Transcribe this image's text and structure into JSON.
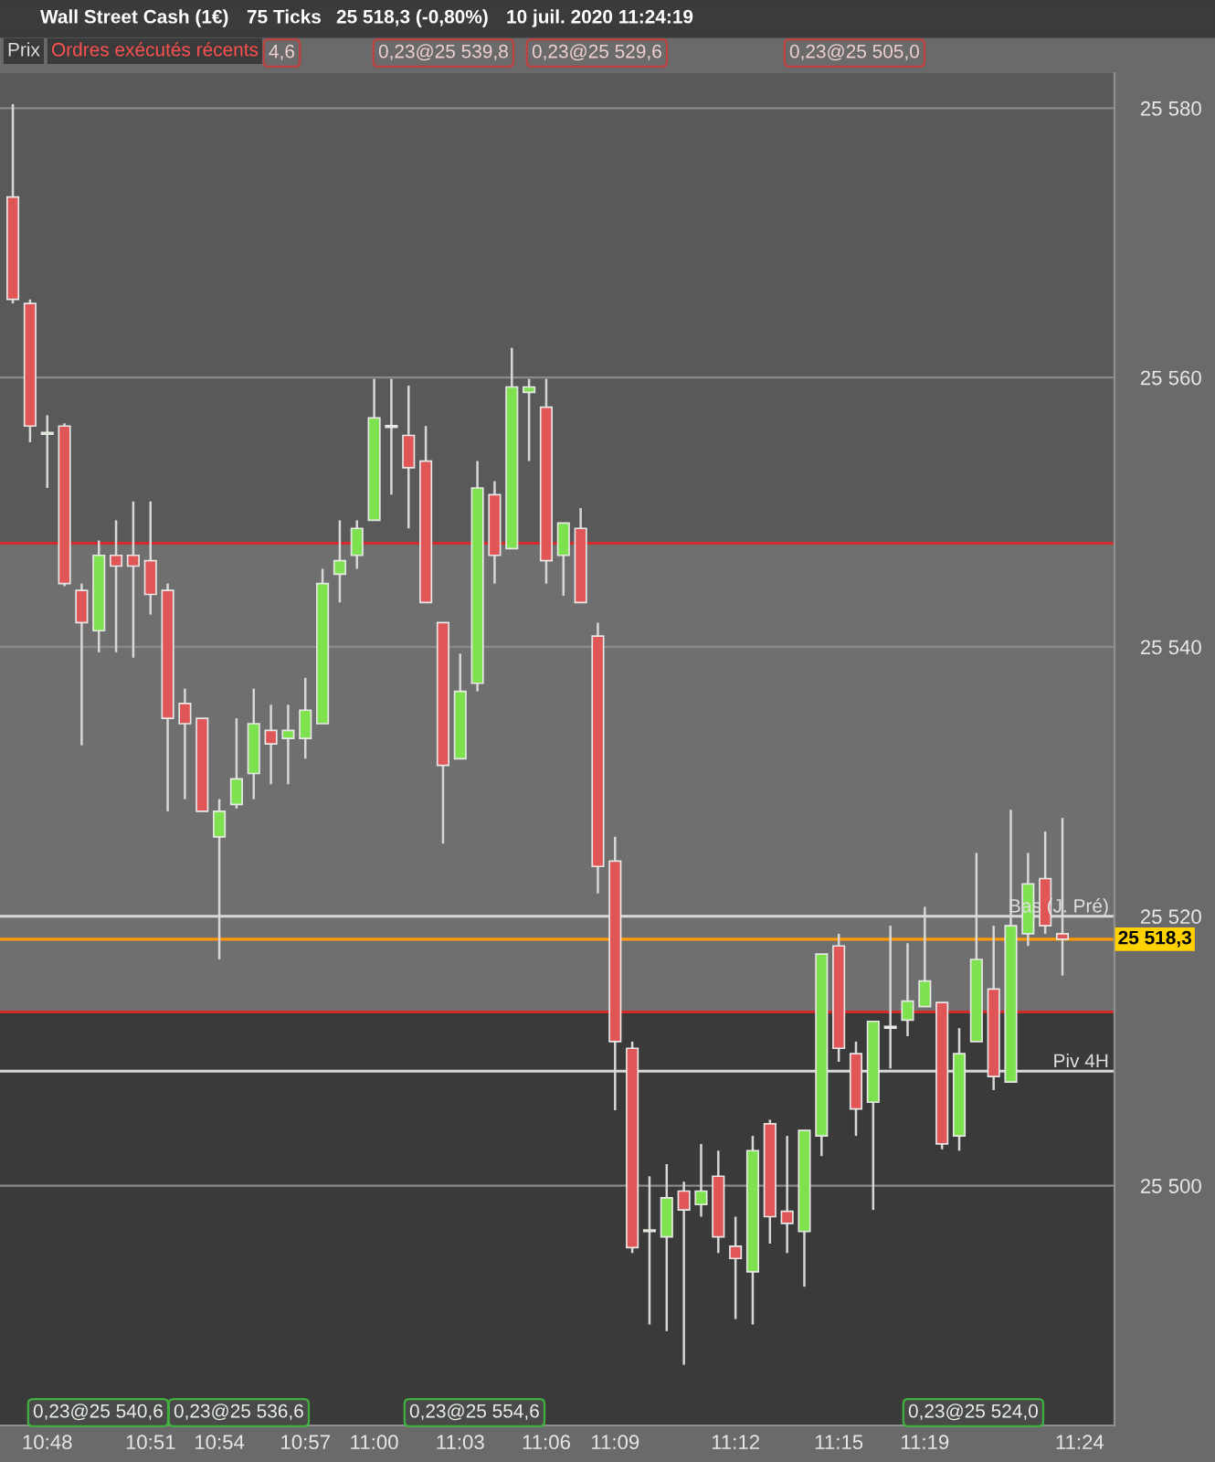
{
  "chart_data": {
    "type": "candlestick",
    "title": "Wall Street Cash (1€)",
    "annotations": [
      "75 Ticks",
      "25 518,3 (-0,80%)",
      "10 juil. 2020 11:24:19",
      "Prix",
      "Ordres exécutés récents",
      "4,6",
      "0,23@25 539,8",
      "0,23@25 529,6",
      "0,23@25 505,0",
      "0,23@25 540,6",
      "0,23@25 536,6",
      "0,23@25 554,6",
      "0,23@25 524,0"
    ],
    "categories": [
      null,
      null,
      "10:48",
      null,
      null,
      null,
      null,
      null,
      "10:51",
      null,
      null,
      null,
      "10:54",
      null,
      null,
      null,
      null,
      "10:57",
      null,
      null,
      null,
      "11:00",
      null,
      null,
      null,
      null,
      "11:03",
      null,
      null,
      null,
      null,
      "11:06",
      null,
      null,
      null,
      "11:09",
      null,
      null,
      null,
      null,
      null,
      null,
      "11:12",
      null,
      null,
      null,
      null,
      null,
      "11:15",
      null,
      null,
      null,
      null,
      "11:19",
      null,
      null,
      null,
      null,
      null,
      null,
      null,
      null,
      "11:24"
    ],
    "ohlc": [
      [
        25573.4,
        25580.3,
        25565.5,
        25565.8
      ],
      [
        25565.5,
        25565.8,
        25555.2,
        25556.4
      ],
      [
        25555.8,
        25557.2,
        25551.8,
        25555.8
      ],
      [
        25556.4,
        25556.6,
        25544.5,
        25544.7
      ],
      [
        25544.2,
        25544.7,
        25532.7,
        25541.8
      ],
      [
        25541.2,
        25547.9,
        25539.6,
        25546.8
      ],
      [
        25546.8,
        25549.4,
        25539.6,
        25546.0
      ],
      [
        25546.8,
        25550.8,
        25539.2,
        25546.0
      ],
      [
        25546.4,
        25550.8,
        25542.4,
        25543.9
      ],
      [
        25544.2,
        25544.7,
        25527.8,
        25534.7
      ],
      [
        25535.8,
        25536.9,
        25528.7,
        25534.3
      ],
      [
        25534.7,
        25534.7,
        25527.8,
        25527.8
      ],
      [
        25525.9,
        25528.7,
        25516.8,
        25527.8
      ],
      [
        25528.3,
        25534.7,
        25528.0,
        25530.2
      ],
      [
        25530.6,
        25536.9,
        25528.7,
        25534.3
      ],
      [
        25533.8,
        25535.7,
        25529.8,
        25532.8
      ],
      [
        25533.2,
        25535.7,
        25529.8,
        25533.8
      ],
      [
        25533.2,
        25537.7,
        25531.7,
        25535.3
      ],
      [
        25534.3,
        25545.8,
        25534.3,
        25544.7
      ],
      [
        25545.4,
        25549.4,
        25543.3,
        25546.4
      ],
      [
        25546.8,
        25549.4,
        25545.8,
        25548.8
      ],
      [
        25549.4,
        25559.9,
        25549.4,
        25557.0
      ],
      [
        25556.3,
        25559.9,
        25551.3,
        25556.3
      ],
      [
        25555.7,
        25559.4,
        25548.8,
        25553.3
      ],
      [
        25553.8,
        25556.4,
        25543.3,
        25543.3
      ],
      [
        25541.8,
        25541.8,
        25525.4,
        25531.2
      ],
      [
        25531.7,
        25539.5,
        25531.7,
        25536.7
      ],
      [
        25537.3,
        25553.8,
        25536.7,
        25551.8
      ],
      [
        25551.3,
        25552.3,
        25544.7,
        25546.8
      ],
      [
        25547.3,
        25562.2,
        25547.3,
        25559.3
      ],
      [
        25558.9,
        25559.9,
        25553.8,
        25559.3
      ],
      [
        25557.8,
        25559.9,
        25544.7,
        25546.4
      ],
      [
        25546.8,
        25549.2,
        25543.8,
        25549.2
      ],
      [
        25548.8,
        25550.3,
        25543.3,
        25543.3
      ],
      [
        25540.8,
        25541.8,
        25521.7,
        25523.7
      ],
      [
        25524.1,
        25525.9,
        25505.6,
        25510.7
      ],
      [
        25510.2,
        25510.7,
        25495.0,
        25495.4
      ],
      [
        25496.6,
        25500.7,
        25489.7,
        25496.6
      ],
      [
        25496.2,
        25501.6,
        25489.2,
        25499.1
      ],
      [
        25499.6,
        25500.3,
        25486.7,
        25498.2
      ],
      [
        25498.6,
        25503.1,
        25497.7,
        25499.6
      ],
      [
        25500.7,
        25502.6,
        25495.0,
        25496.2
      ],
      [
        25495.5,
        25497.7,
        25490.1,
        25494.6
      ],
      [
        25493.6,
        25503.7,
        25489.7,
        25502.6
      ],
      [
        25504.6,
        25504.9,
        25495.7,
        25497.7
      ],
      [
        25498.1,
        25503.7,
        25495.0,
        25497.2
      ],
      [
        25496.6,
        25504.1,
        25492.5,
        25504.1
      ],
      [
        25503.7,
        25517.2,
        25502.2,
        25517.2
      ],
      [
        25517.8,
        25518.7,
        25509.2,
        25510.2
      ],
      [
        25509.8,
        25510.7,
        25503.7,
        25505.7
      ],
      [
        25506.2,
        25512.2,
        25498.2,
        25512.2
      ],
      [
        25511.7,
        25519.3,
        25508.7,
        25511.7
      ],
      [
        25512.3,
        25518.0,
        25511.1,
        25513.7
      ],
      [
        25513.3,
        25520.7,
        25513.3,
        25515.2
      ],
      [
        25513.6,
        25513.6,
        25502.7,
        25503.1
      ],
      [
        25503.7,
        25511.7,
        25502.6,
        25509.8
      ],
      [
        25510.7,
        25524.7,
        25510.7,
        25516.8
      ],
      [
        25514.6,
        25519.3,
        25507.1,
        25508.1
      ],
      [
        25507.7,
        25527.9,
        25507.7,
        25519.3
      ],
      [
        25518.7,
        25524.7,
        25517.8,
        25522.4
      ],
      [
        25522.8,
        25526.3,
        25518.7,
        25519.3
      ],
      [
        25518.7,
        25527.3,
        25515.6,
        25518.3
      ],
      null
    ],
    "colors": [
      "#e05555",
      "#e05555",
      "#7de24e",
      "#e05555",
      "#e05555",
      "#7de24e",
      "#e05555",
      "#e05555",
      "#e05555",
      "#e05555",
      "#e05555",
      "#e05555",
      "#7de24e",
      "#7de24e",
      "#7de24e",
      "#e05555",
      "#7de24e",
      "#7de24e",
      "#7de24e",
      "#7de24e",
      "#7de24e",
      "#7de24e",
      "#7de24e",
      "#e05555",
      "#e05555",
      "#e05555",
      "#7de24e",
      "#7de24e",
      "#e05555",
      "#7de24e",
      "#7de24e",
      "#e05555",
      "#7de24e",
      "#e05555",
      "#e05555",
      "#e05555",
      "#e05555",
      "#7de24e",
      "#7de24e",
      "#e05555",
      "#7de24e",
      "#e05555",
      "#e05555",
      "#7de24e",
      "#e05555",
      "#e05555",
      "#7de24e",
      "#7de24e",
      "#e05555",
      "#e05555",
      "#7de24e",
      "#7de24e",
      "#7de24e",
      "#7de24e",
      "#e05555",
      "#7de24e",
      "#7de24e",
      "#e05555",
      "#7de24e",
      "#7de24e",
      "#e05555",
      "#e05555",
      null
    ],
    "ylim": [
      25482.2,
      25582.6
    ],
    "yticks": [
      {
        "value": 25500,
        "label": "25 500"
      },
      {
        "value": 25520,
        "label": "25 520"
      },
      {
        "value": 25540,
        "label": "25 540"
      },
      {
        "value": 25560,
        "label": "25 560"
      },
      {
        "value": 25580,
        "label": "25 580"
      }
    ],
    "grid": "y",
    "bands": [
      {
        "axis": "y",
        "from": 25547.7,
        "to": 25582.6,
        "color": "#595959"
      },
      {
        "axis": "y",
        "from": 25512.9,
        "to": 25547.7,
        "color": "#6f6f6f"
      },
      {
        "axis": "y",
        "from": 25482.2,
        "to": 25512.9,
        "color": "#3a3a3a"
      }
    ],
    "ref_lines": [
      {
        "axis": "y",
        "value": 25547.7,
        "color": "#d42a2a"
      },
      {
        "axis": "y",
        "value": 25512.9,
        "color": "#d42a2a"
      },
      {
        "axis": "y",
        "value": 25520.0,
        "label": "Bas (J. Pré)",
        "color": "#d8d8d8"
      },
      {
        "axis": "y",
        "value": 25508.5,
        "label": "Piv 4H",
        "color": "#d8d8d8"
      },
      {
        "axis": "y",
        "value": 25518.3,
        "label": "25 518,3",
        "color": "#ff9a00"
      }
    ]
  }
}
